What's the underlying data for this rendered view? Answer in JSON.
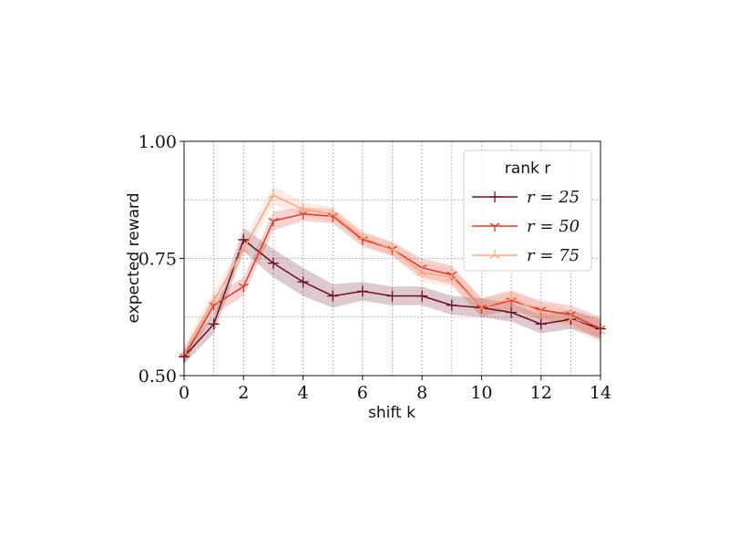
{
  "chart_data": {
    "type": "line",
    "xlabel": "shift k",
    "ylabel": "expected reward",
    "xlim": [
      0,
      14
    ],
    "ylim": [
      0.5,
      1.0
    ],
    "xticks": [
      "0",
      "2",
      "4",
      "6",
      "8",
      "10",
      "12",
      "14"
    ],
    "yticks": [
      "0.50",
      "0.75",
      "1.00"
    ],
    "grid": true,
    "legend_title": "rank r",
    "legend_placement": "top-right",
    "x": [
      0,
      1,
      2,
      3,
      4,
      5,
      6,
      7,
      8,
      9,
      10,
      11,
      12,
      13,
      14
    ],
    "series": [
      {
        "name": "r = 25",
        "color": "#6b0f22",
        "marker": "plus",
        "values": [
          0.54,
          0.61,
          0.79,
          0.74,
          0.7,
          0.67,
          0.68,
          0.67,
          0.67,
          0.65,
          0.645,
          0.635,
          0.61,
          0.62,
          0.6
        ],
        "band": [
          0.015,
          0.02,
          0.025,
          0.03,
          0.03,
          0.025,
          0.02,
          0.02,
          0.02,
          0.02,
          0.02,
          0.02,
          0.02,
          0.02,
          0.02
        ]
      },
      {
        "name": "r = 50",
        "color": "#d83a2c",
        "marker": "tri_down",
        "values": [
          0.54,
          0.65,
          0.69,
          0.83,
          0.845,
          0.84,
          0.79,
          0.77,
          0.73,
          0.715,
          0.645,
          0.66,
          0.64,
          0.63,
          0.6
        ],
        "band": [
          0.015,
          0.02,
          0.02,
          0.02,
          0.015,
          0.015,
          0.015,
          0.015,
          0.02,
          0.02,
          0.02,
          0.02,
          0.02,
          0.02,
          0.025
        ]
      },
      {
        "name": "r = 75",
        "color": "#f4a582",
        "marker": "tri_up",
        "values": [
          0.55,
          0.66,
          0.77,
          0.885,
          0.855,
          0.845,
          0.795,
          0.77,
          0.72,
          0.71,
          0.645,
          0.665,
          0.635,
          0.62,
          0.595
        ],
        "band": [
          0.015,
          0.02,
          0.02,
          0.02,
          0.015,
          0.015,
          0.015,
          0.015,
          0.02,
          0.02,
          0.02,
          0.02,
          0.02,
          0.02,
          0.025
        ]
      }
    ]
  }
}
